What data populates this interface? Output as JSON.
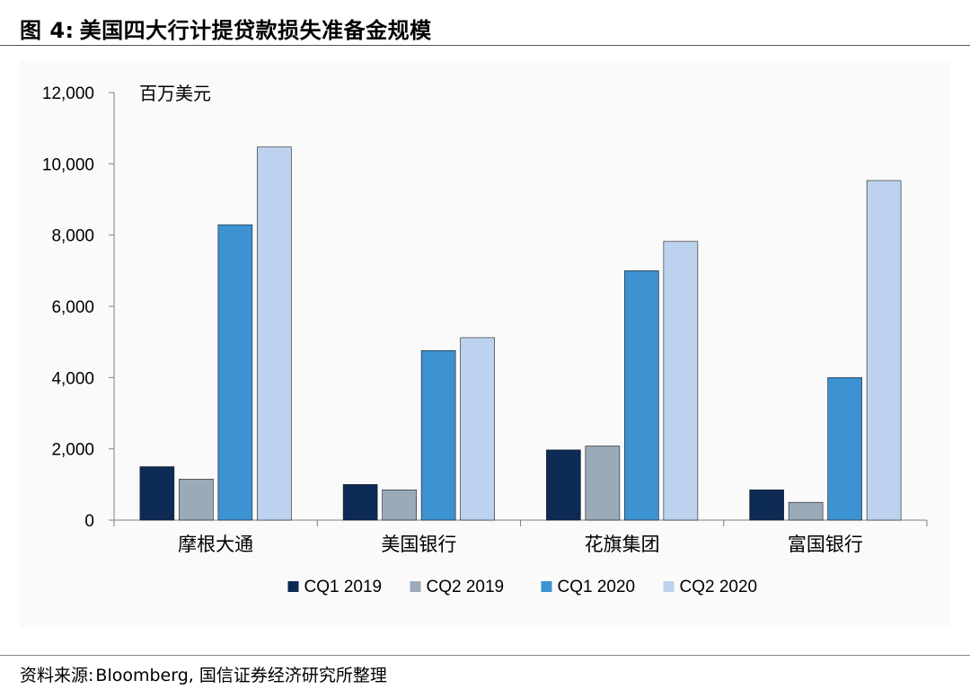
{
  "header": {
    "figure_number": "图 4:",
    "title": "美国四大行计提贷款损失准备金规模"
  },
  "footer": {
    "source_label": "资料来源:",
    "source_text": "Bloomberg, 国信证券经济研究所整理"
  },
  "chart_data": {
    "type": "bar",
    "unit_label": "百万美元",
    "categories": [
      "摩根大通",
      "美国银行",
      "花旗集团",
      "富国银行"
    ],
    "series": [
      {
        "name": "CQ1 2019",
        "color": "#0d2a55",
        "values": [
          1500,
          1000,
          1970,
          850
        ]
      },
      {
        "name": "CQ2 2019",
        "color": "#9aaab8",
        "values": [
          1150,
          850,
          2080,
          500
        ]
      },
      {
        "name": "CQ1 2020",
        "color": "#3d92d1",
        "values": [
          8290,
          4760,
          7000,
          4000
        ]
      },
      {
        "name": "CQ2 2020",
        "color": "#bcd2ee",
        "values": [
          10470,
          5120,
          7820,
          9530
        ]
      }
    ],
    "ylim": [
      0,
      12000
    ],
    "yticks": [
      0,
      2000,
      4000,
      6000,
      8000,
      10000,
      12000
    ],
    "ytick_labels": [
      "0",
      "2,000",
      "4,000",
      "6,000",
      "8,000",
      "10,000",
      "12,000"
    ],
    "legend": "bottom",
    "grid": false
  }
}
